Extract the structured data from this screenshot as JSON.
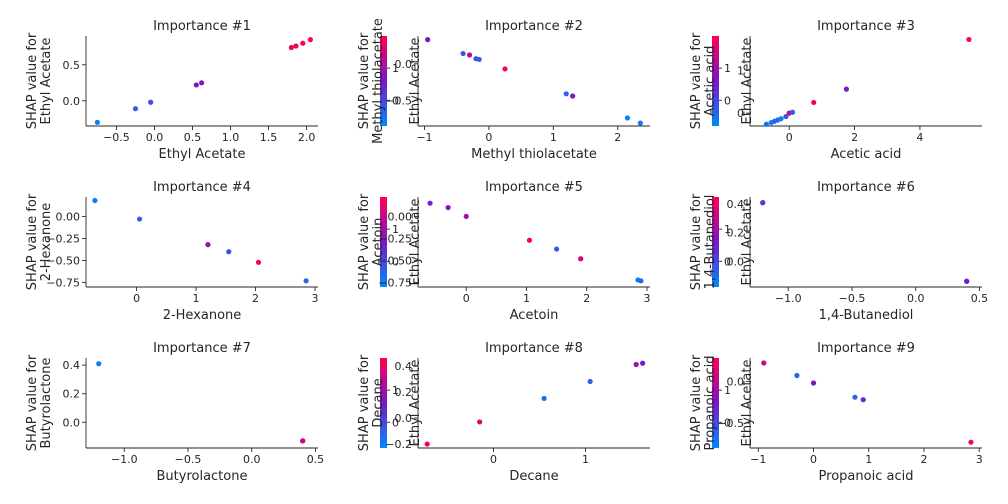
{
  "figure": {
    "background": "#ffffff",
    "colormap": [
      "#008afb",
      "#7a16c8",
      "#ff0052"
    ]
  },
  "chart_data": [
    {
      "type": "scatter",
      "title": "Importance #1",
      "xlabel": "Ethyl Acetate",
      "ylabel": [
        "SHAP value for",
        "Ethyl Acetate"
      ],
      "colorbar_label": "Ethyl Acetate",
      "xlim": [
        -0.9,
        2.15
      ],
      "ylim": [
        -0.35,
        0.9
      ],
      "xticks": [
        -0.5,
        0.0,
        0.5,
        1.0,
        1.5,
        2.0
      ],
      "xtick_labels": [
        "−0.5",
        "0.0",
        "0.5",
        "1.0",
        "1.5",
        "2.0"
      ],
      "yticks": [
        0.0,
        0.5
      ],
      "ytick_labels": [
        "0.0",
        "0.5"
      ],
      "cbticks": [
        0,
        1
      ],
      "cbtick_labels": [
        "0",
        "1"
      ],
      "cbrange": [
        -0.8,
        2.0
      ],
      "points": [
        {
          "x": -0.75,
          "y": -0.3,
          "c": -0.75
        },
        {
          "x": -0.25,
          "y": -0.11,
          "c": -0.25
        },
        {
          "x": -0.05,
          "y": -0.02,
          "c": -0.05
        },
        {
          "x": 0.55,
          "y": 0.22,
          "c": 0.6
        },
        {
          "x": 0.62,
          "y": 0.25,
          "c": 0.7
        },
        {
          "x": 1.8,
          "y": 0.74,
          "c": 1.8
        },
        {
          "x": 1.86,
          "y": 0.76,
          "c": 1.86
        },
        {
          "x": 1.95,
          "y": 0.8,
          "c": 1.95
        },
        {
          "x": 2.05,
          "y": 0.85,
          "c": 2.05
        }
      ]
    },
    {
      "type": "scatter",
      "title": "Importance #2",
      "xlabel": "Methyl thiolacetate",
      "ylabel": [
        "SHAP value for",
        "Methyl thiolacetate"
      ],
      "colorbar_label": "Ethyl Acetate",
      "xlim": [
        -1.1,
        2.5
      ],
      "ylim": [
        -0.85,
        0.38
      ],
      "xticks": [
        -1,
        0,
        1,
        2
      ],
      "xtick_labels": [
        "−1",
        "0",
        "1",
        "2"
      ],
      "yticks": [
        -0.5,
        0.0
      ],
      "ytick_labels": [
        "−0.5",
        "0.0"
      ],
      "cbticks": [
        0,
        1
      ],
      "cbtick_labels": [
        "0",
        "1"
      ],
      "cbrange": [
        -0.8,
        2.0
      ],
      "points": [
        {
          "x": -0.95,
          "y": 0.33,
          "c": 0.6
        },
        {
          "x": -0.4,
          "y": 0.14,
          "c": -0.2
        },
        {
          "x": -0.3,
          "y": 0.12,
          "c": 1.2
        },
        {
          "x": -0.2,
          "y": 0.07,
          "c": -0.1
        },
        {
          "x": -0.15,
          "y": 0.06,
          "c": -0.3
        },
        {
          "x": 0.25,
          "y": -0.07,
          "c": 1.9
        },
        {
          "x": 1.2,
          "y": -0.41,
          "c": -0.3
        },
        {
          "x": 1.3,
          "y": -0.44,
          "c": 0.6
        },
        {
          "x": 2.15,
          "y": -0.74,
          "c": -0.7
        },
        {
          "x": 2.35,
          "y": -0.81,
          "c": -0.6
        }
      ]
    },
    {
      "type": "scatter",
      "title": "Importance #3",
      "xlabel": "Acetic acid",
      "ylabel": [
        "SHAP value for",
        "Acetic acid"
      ],
      "colorbar_label": "Ethyl Acetate",
      "xlim": [
        -1.2,
        5.9
      ],
      "ylim": [
        -0.3,
        1.8
      ],
      "xticks": [
        0,
        2,
        4
      ],
      "xtick_labels": [
        "0",
        "2",
        "4"
      ],
      "yticks": [
        0,
        1
      ],
      "ytick_labels": [
        "0",
        "1"
      ],
      "cbticks": [
        0,
        1
      ],
      "cbtick_labels": [
        "0",
        "1"
      ],
      "cbrange": [
        -0.8,
        2.0
      ],
      "points": [
        {
          "x": -0.7,
          "y": -0.26,
          "c": -0.5
        },
        {
          "x": -0.55,
          "y": -0.22,
          "c": -0.6
        },
        {
          "x": -0.45,
          "y": -0.19,
          "c": -0.3
        },
        {
          "x": -0.35,
          "y": -0.16,
          "c": -0.4
        },
        {
          "x": -0.25,
          "y": -0.13,
          "c": -0.7
        },
        {
          "x": -0.1,
          "y": -0.08,
          "c": -0.2
        },
        {
          "x": 0.0,
          "y": 0.0,
          "c": 1.5
        },
        {
          "x": 0.1,
          "y": 0.02,
          "c": -0.2
        },
        {
          "x": 0.75,
          "y": 0.25,
          "c": 1.9
        },
        {
          "x": 1.75,
          "y": 0.56,
          "c": 0.6
        },
        {
          "x": 5.5,
          "y": 1.72,
          "c": 2.0
        }
      ]
    },
    {
      "type": "scatter",
      "title": "Importance #4",
      "xlabel": "2-Hexanone",
      "ylabel": [
        "SHAP value for",
        "2-Hexanone"
      ],
      "colorbar_label": "Ethyl Acetate",
      "xlim": [
        -0.85,
        3.05
      ],
      "ylim": [
        -0.8,
        0.22
      ],
      "xticks": [
        0,
        1,
        2,
        3
      ],
      "xtick_labels": [
        "0",
        "1",
        "2",
        "3"
      ],
      "yticks": [
        0.0,
        -0.25,
        -0.5,
        -0.75
      ],
      "ytick_labels": [
        "0.00",
        "−0.25",
        "−0.50",
        "−0.75"
      ],
      "cbticks": [
        0,
        1
      ],
      "cbtick_labels": [
        "0",
        "1"
      ],
      "cbrange": [
        -0.8,
        2.0
      ],
      "points": [
        {
          "x": -0.7,
          "y": 0.18,
          "c": -0.6
        },
        {
          "x": 0.05,
          "y": -0.03,
          "c": -0.3
        },
        {
          "x": 1.2,
          "y": -0.32,
          "c": 0.8
        },
        {
          "x": 1.55,
          "y": -0.4,
          "c": -0.1
        },
        {
          "x": 2.05,
          "y": -0.52,
          "c": 1.9
        },
        {
          "x": 2.85,
          "y": -0.73,
          "c": -0.4
        }
      ]
    },
    {
      "type": "scatter",
      "title": "Importance #5",
      "xlabel": "Acetoin",
      "ylabel": [
        "SHAP value for",
        "Acetoin"
      ],
      "colorbar_label": "Ethyl Acetate",
      "xlim": [
        -0.8,
        3.05
      ],
      "ylim": [
        -0.8,
        0.22
      ],
      "xticks": [
        0,
        1,
        2,
        3
      ],
      "xtick_labels": [
        "0",
        "1",
        "2",
        "3"
      ],
      "yticks": [
        0.0,
        -0.25,
        -0.5,
        -0.75
      ],
      "ytick_labels": [
        "0.00",
        "−0.25",
        "−0.50",
        "−0.75"
      ],
      "cbticks": [
        0,
        1
      ],
      "cbtick_labels": [
        "0",
        "1"
      ],
      "cbrange": [
        -0.8,
        2.0
      ],
      "points": [
        {
          "x": -0.6,
          "y": 0.15,
          "c": 0.5
        },
        {
          "x": -0.3,
          "y": 0.1,
          "c": 0.8
        },
        {
          "x": 0.0,
          "y": 0.0,
          "c": 1.0
        },
        {
          "x": 1.05,
          "y": -0.27,
          "c": 1.9
        },
        {
          "x": 1.5,
          "y": -0.37,
          "c": -0.2
        },
        {
          "x": 1.9,
          "y": -0.48,
          "c": 1.6
        },
        {
          "x": 2.85,
          "y": -0.72,
          "c": -0.7
        },
        {
          "x": 2.9,
          "y": -0.73,
          "c": -0.4
        }
      ]
    },
    {
      "type": "scatter",
      "title": "Importance #6",
      "xlabel": "1,4-Butanediol",
      "ylabel": [
        "SHAP value for",
        "1,4-Butanediol"
      ],
      "colorbar_label": "Ethyl Acetate",
      "xlim": [
        -1.3,
        0.52
      ],
      "ylim": [
        -0.18,
        0.45
      ],
      "xticks": [
        -1.0,
        -0.5,
        0.0,
        0.5
      ],
      "xtick_labels": [
        "−1.0",
        "−0.5",
        "0.0",
        "0.5"
      ],
      "yticks": [
        0.0,
        0.2,
        0.4
      ],
      "ytick_labels": [
        "0.0",
        "0.2",
        "0.4"
      ],
      "cbticks": [
        0,
        1
      ],
      "cbtick_labels": [
        "0",
        "1"
      ],
      "cbrange": [
        -0.8,
        2.0
      ],
      "points": [
        {
          "x": -1.2,
          "y": 0.41,
          "c": 1.1
        },
        {
          "x": -1.2,
          "y": 0.41,
          "c": 0.2
        },
        {
          "x": 0.4,
          "y": -0.14,
          "c": 1.1
        },
        {
          "x": 0.4,
          "y": -0.14,
          "c": 0.6
        }
      ]
    },
    {
      "type": "scatter",
      "title": "Importance #7",
      "xlabel": "Butyrolactone",
      "ylabel": [
        "SHAP value for",
        "Butyrolactone"
      ],
      "colorbar_label": "Ethyl Acetate",
      "xlim": [
        -1.3,
        0.52
      ],
      "ylim": [
        -0.18,
        0.45
      ],
      "xticks": [
        -1.0,
        -0.5,
        0.0,
        0.5
      ],
      "xtick_labels": [
        "−1.0",
        "−0.5",
        "0.0",
        "0.5"
      ],
      "yticks": [
        0.0,
        0.2,
        0.4
      ],
      "ytick_labels": [
        "0.0",
        "0.2",
        "0.4"
      ],
      "cbticks": [
        0,
        1
      ],
      "cbtick_labels": [
        "0",
        "1"
      ],
      "cbrange": [
        -0.8,
        2.0
      ],
      "points": [
        {
          "x": -1.2,
          "y": 0.41,
          "c": -0.6
        },
        {
          "x": 0.4,
          "y": -0.13,
          "c": 2.0
        },
        {
          "x": 0.4,
          "y": -0.13,
          "c": 1.4
        }
      ]
    },
    {
      "type": "scatter",
      "title": "Importance #8",
      "xlabel": "Decane",
      "ylabel": [
        "SHAP value for",
        "Decane"
      ],
      "colorbar_label": "Ethyl Acetate",
      "xlim": [
        -0.82,
        1.7
      ],
      "ylim": [
        -0.23,
        0.46
      ],
      "xticks": [
        0,
        1
      ],
      "xtick_labels": [
        "0",
        "1"
      ],
      "yticks": [
        -0.2,
        0.0,
        0.2,
        0.4
      ],
      "ytick_labels": [
        "−0.2",
        "0.0",
        "0.2",
        "0.4"
      ],
      "cbticks": [
        0,
        1
      ],
      "cbtick_labels": [
        "0",
        "1"
      ],
      "cbrange": [
        -0.8,
        2.0
      ],
      "points": [
        {
          "x": -0.72,
          "y": -0.2,
          "c": 1.9
        },
        {
          "x": -0.15,
          "y": -0.03,
          "c": 1.6
        },
        {
          "x": 0.55,
          "y": 0.15,
          "c": -0.4
        },
        {
          "x": 1.05,
          "y": 0.28,
          "c": -0.3
        },
        {
          "x": 1.55,
          "y": 0.41,
          "c": 1.0
        },
        {
          "x": 1.62,
          "y": 0.42,
          "c": 0.6
        }
      ]
    },
    {
      "type": "scatter",
      "title": "Importance #9",
      "xlabel": "Propanoic acid",
      "ylabel": [
        "SHAP value for",
        "Propanoic acid"
      ],
      "colorbar_label": "Ethyl Acetate",
      "xlim": [
        -1.15,
        3.05
      ],
      "ylim": [
        -0.8,
        0.28
      ],
      "xticks": [
        -1,
        0,
        1,
        2,
        3
      ],
      "xtick_labels": [
        "−1",
        "0",
        "1",
        "2",
        "3"
      ],
      "yticks": [
        -0.5,
        0.0
      ],
      "ytick_labels": [
        "−0.5",
        "0.0"
      ],
      "cbticks": [
        0,
        1
      ],
      "cbtick_labels": [
        "0",
        "1"
      ],
      "cbrange": [
        -0.8,
        2.0
      ],
      "points": [
        {
          "x": -0.9,
          "y": 0.22,
          "c": 1.3
        },
        {
          "x": -0.3,
          "y": 0.07,
          "c": -0.4
        },
        {
          "x": 0.0,
          "y": -0.02,
          "c": 0.6
        },
        {
          "x": 0.75,
          "y": -0.19,
          "c": -0.3
        },
        {
          "x": 0.9,
          "y": -0.22,
          "c": 0.4
        },
        {
          "x": 2.85,
          "y": -0.73,
          "c": 1.9
        }
      ]
    }
  ]
}
